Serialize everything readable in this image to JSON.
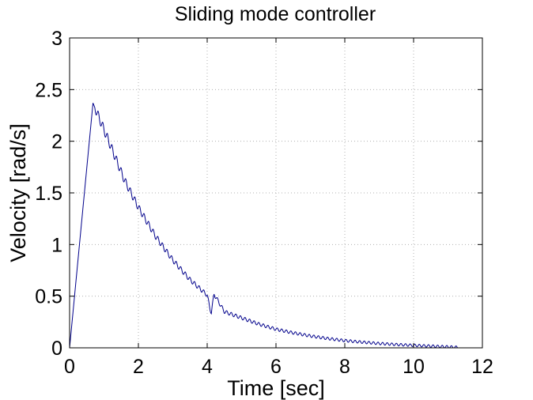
{
  "chart_data": {
    "type": "line",
    "title": "Sliding mode controller",
    "xlabel": "Time [sec]",
    "ylabel": "Velocity [rad/s]",
    "xlim": [
      0,
      12
    ],
    "ylim": [
      0,
      3
    ],
    "xticks": [
      0,
      2,
      4,
      6,
      8,
      10,
      12
    ],
    "yticks": [
      0,
      0.5,
      1,
      1.5,
      2,
      2.5,
      3
    ],
    "xtick_labels": [
      "0",
      "2",
      "4",
      "6",
      "8",
      "10",
      "12"
    ],
    "ytick_labels": [
      "0",
      "0.5",
      "1",
      "1.5",
      "2",
      "2.5",
      "3"
    ],
    "grid": true,
    "grid_style": "dotted",
    "line_color": "#00008b",
    "series": [
      {
        "x": [
          0,
          0.68,
          1.2,
          1.6,
          2.0,
          2.5,
          3.0,
          3.5,
          4.0,
          4.08,
          4.12,
          4.2,
          4.5,
          5.0,
          5.5,
          6.0,
          6.5,
          7.0,
          7.5,
          8.0,
          8.5,
          9.0,
          9.5,
          10.0,
          10.5,
          11.0,
          11.3
        ],
        "y": [
          0,
          2.37,
          1.95,
          1.62,
          1.36,
          1.08,
          0.85,
          0.66,
          0.51,
          0.38,
          0.34,
          0.52,
          0.35,
          0.29,
          0.23,
          0.18,
          0.145,
          0.115,
          0.09,
          0.07,
          0.055,
          0.042,
          0.032,
          0.024,
          0.017,
          0.01,
          0.005
        ]
      }
    ]
  }
}
